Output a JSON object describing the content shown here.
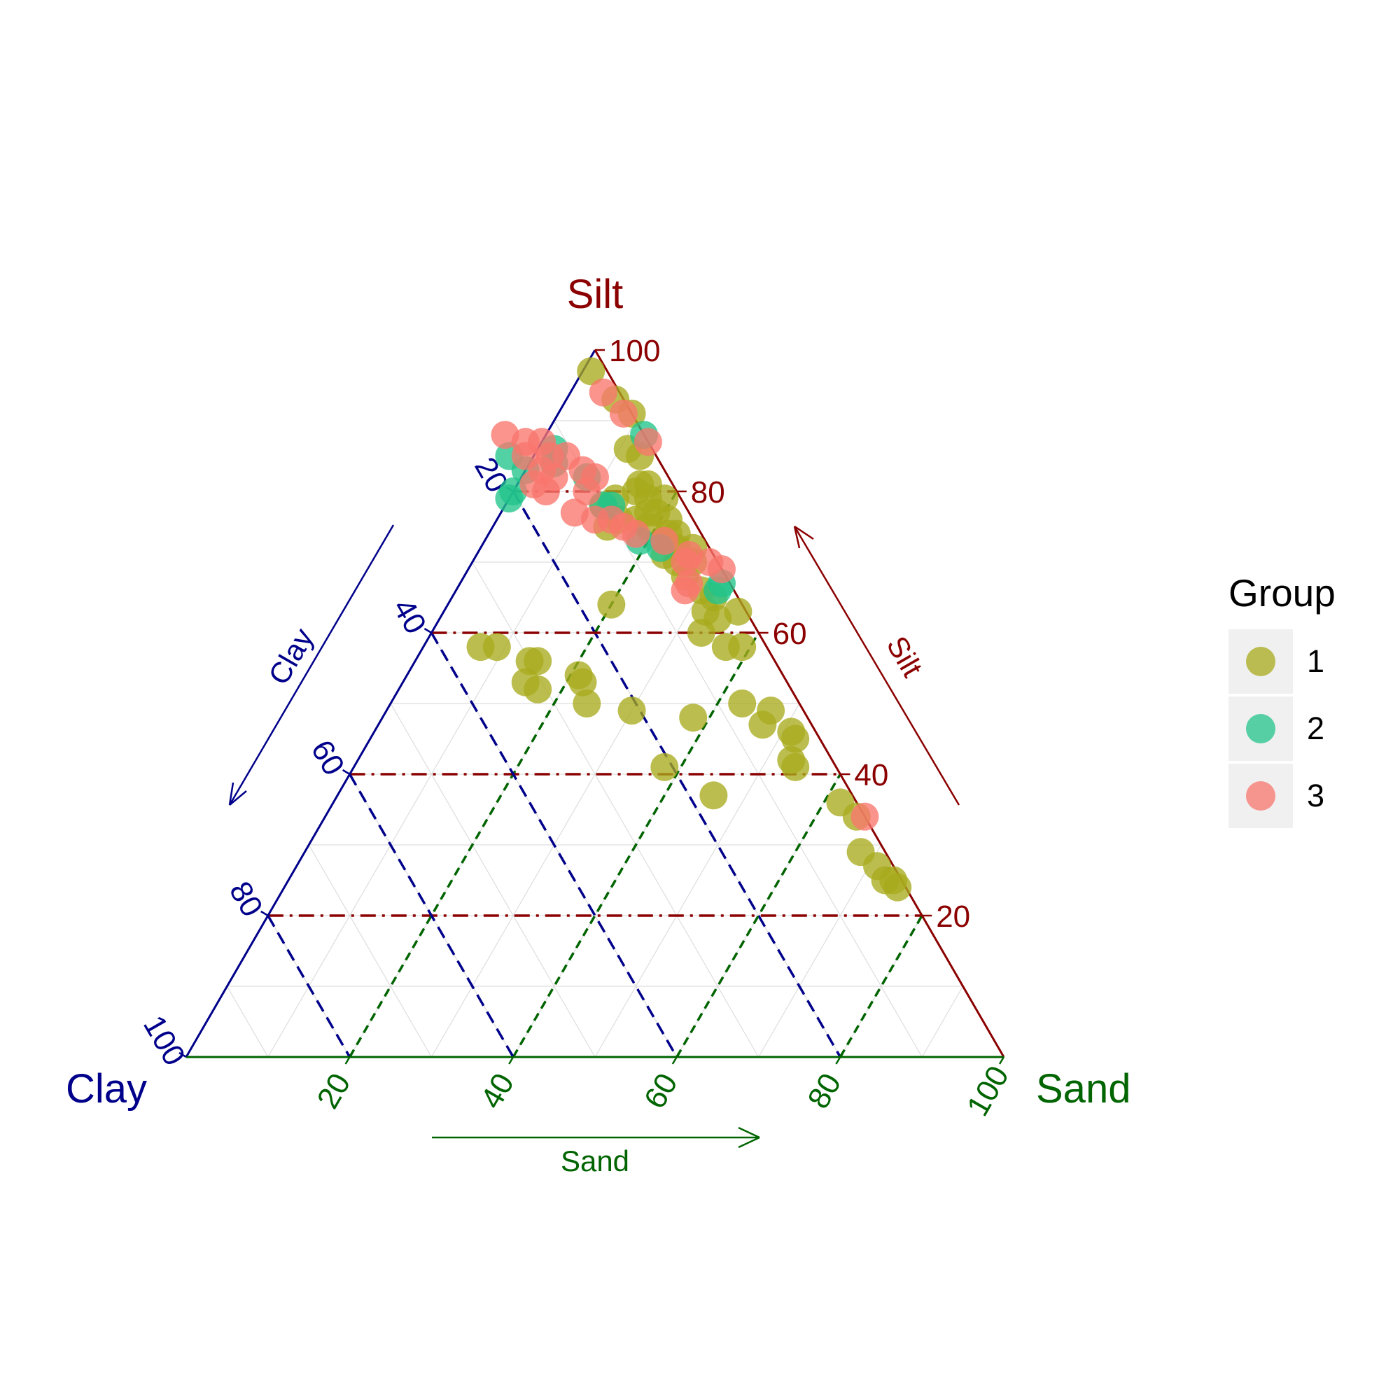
{
  "chart_data": {
    "type": "scatter",
    "subtype": "ternary",
    "axes": {
      "top": {
        "name": "Silt",
        "arrow_label": "Silt",
        "color": "#8b0000"
      },
      "left": {
        "name": "Clay",
        "arrow_label": "Clay",
        "color": "#00008b"
      },
      "right": {
        "name": "Sand",
        "arrow_label": "Sand",
        "color": "#006400"
      }
    },
    "ticks": {
      "silt": [
        "20",
        "40",
        "60",
        "80",
        "100"
      ],
      "clay": [
        "20",
        "40",
        "60",
        "80",
        "100"
      ],
      "sand": [
        "20",
        "40",
        "60",
        "80",
        "100"
      ]
    },
    "grid_levels": [
      10,
      20,
      30,
      40,
      50,
      60,
      70,
      80,
      90
    ],
    "reference_lines": [
      20,
      40,
      60,
      80
    ],
    "legend": {
      "title": "Group",
      "position": "right"
    },
    "series": [
      {
        "name": "1",
        "color": "#a8ab1c",
        "points": [
          [
            2,
            97,
            1
          ],
          [
            1,
            93,
            6
          ],
          [
            0,
            91,
            9
          ],
          [
            3,
            86,
            11
          ],
          [
            2,
            85,
            13
          ],
          [
            4,
            81,
            15
          ],
          [
            3,
            81,
            16
          ],
          [
            5,
            80,
            15
          ],
          [
            4,
            79,
            17
          ],
          [
            2,
            79,
            19
          ],
          [
            5,
            77,
            18
          ],
          [
            4,
            77,
            19
          ],
          [
            3,
            76,
            21
          ],
          [
            6,
            75,
            19
          ],
          [
            4,
            74,
            22
          ],
          [
            3,
            74,
            23
          ],
          [
            5,
            73,
            22
          ],
          [
            4,
            72,
            24
          ],
          [
            2,
            72,
            26
          ],
          [
            3,
            70,
            27
          ],
          [
            5,
            70,
            25
          ],
          [
            8,
            79,
            13
          ],
          [
            10,
            78,
            12
          ],
          [
            7,
            76,
            17
          ],
          [
            16,
            64,
            20
          ],
          [
            5,
            68,
            27
          ],
          [
            4,
            66,
            30
          ],
          [
            3,
            65,
            32
          ],
          [
            5,
            63,
            32
          ],
          [
            4,
            62,
            34
          ],
          [
            7,
            60,
            33
          ],
          [
            5,
            58,
            37
          ],
          [
            3,
            58,
            39
          ],
          [
            35,
            58,
            7
          ],
          [
            33,
            58,
            9
          ],
          [
            30,
            56,
            14
          ],
          [
            29,
            56,
            15
          ],
          [
            32,
            53,
            15
          ],
          [
            31,
            52,
            17
          ],
          [
            25,
            54,
            21
          ],
          [
            25,
            53,
            22
          ],
          [
            26,
            50,
            24
          ],
          [
            21,
            49,
            30
          ],
          [
            14,
            48,
            38
          ],
          [
            7,
            50,
            43
          ],
          [
            4,
            49,
            47
          ],
          [
            6,
            47,
            47
          ],
          [
            3,
            46,
            51
          ],
          [
            3,
            45,
            52
          ],
          [
            5,
            42,
            53
          ],
          [
            5,
            41,
            54
          ],
          [
            21,
            41,
            38
          ],
          [
            17,
            37,
            46
          ],
          [
            2,
            36,
            62
          ],
          [
            1,
            34,
            65
          ],
          [
            3,
            29,
            68
          ],
          [
            2,
            27,
            71
          ],
          [
            2,
            25,
            73
          ],
          [
            1,
            24,
            75
          ],
          [
            1,
            25,
            74
          ],
          [
            1,
            63,
            36
          ],
          [
            9,
            76,
            15
          ],
          [
            11,
            75,
            14
          ],
          [
            6,
            71,
            23
          ]
        ]
      },
      {
        "name": "2",
        "color": "#21c48a",
        "points": [
          [
            0,
            88,
            12
          ],
          [
            17,
            83,
            0
          ],
          [
            18,
            85,
            -3
          ],
          [
            21,
            79,
            0
          ],
          [
            20,
            80,
            0
          ],
          [
            13,
            84,
            3
          ],
          [
            12,
            86,
            2
          ],
          [
            10,
            78,
            12
          ],
          [
            9,
            78,
            13
          ],
          [
            6,
            72,
            22
          ],
          [
            2,
            66,
            32
          ],
          [
            1,
            67,
            32
          ],
          [
            8,
            73,
            19
          ],
          [
            10,
            82,
            8
          ]
        ]
      },
      {
        "name": "3",
        "color": "#f8766d",
        "points": [
          [
            2,
            94,
            4
          ],
          [
            1,
            91,
            8
          ],
          [
            0,
            87,
            13
          ],
          [
            17,
            88,
            -5
          ],
          [
            13,
            87,
            0
          ],
          [
            15,
            87,
            -2
          ],
          [
            13,
            85,
            2
          ],
          [
            16,
            85,
            -1
          ],
          [
            15,
            83,
            2
          ],
          [
            11,
            85,
            4
          ],
          [
            10,
            83,
            7
          ],
          [
            14,
            82,
            4
          ],
          [
            17,
            81,
            2
          ],
          [
            16,
            80,
            4
          ],
          [
            9,
            82,
            9
          ],
          [
            11,
            80,
            9
          ],
          [
            10,
            76,
            14
          ],
          [
            14,
            77,
            9
          ],
          [
            12,
            76,
            12
          ],
          [
            8,
            74,
            18
          ],
          [
            5,
            73,
            22
          ],
          [
            3,
            71,
            26
          ],
          [
            4,
            70,
            26
          ],
          [
            1,
            70,
            29
          ],
          [
            0,
            69,
            31
          ],
          [
            5,
            67,
            28
          ],
          [
            6,
            66,
            28
          ],
          [
            0,
            34,
            66
          ],
          [
            9,
            75,
            16
          ]
        ]
      }
    ]
  }
}
